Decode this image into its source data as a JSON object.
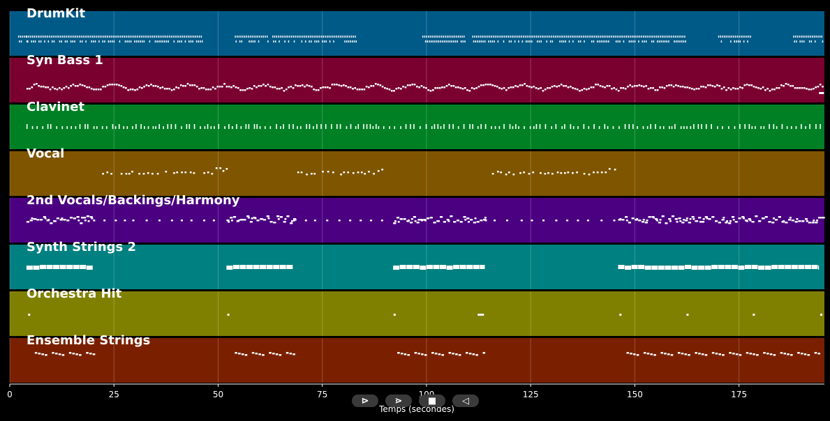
{
  "chart_data": {
    "type": "piano-roll",
    "xlabel": "Temps (secondes)",
    "xlim": [
      0,
      195.5
    ],
    "xticks": [
      0,
      25,
      50,
      75,
      100,
      125,
      150,
      175
    ],
    "grid": true,
    "tracks": [
      {
        "name": "DrumKit",
        "color": "#005a87",
        "style": "drum",
        "sections": [
          [
            2,
            4
          ],
          [
            4,
            46
          ],
          [
            54,
            62
          ],
          [
            63,
            83
          ],
          [
            99,
            109
          ],
          [
            111,
            162
          ],
          [
            170,
            178
          ],
          [
            188,
            195
          ]
        ]
      },
      {
        "name": "Syn Bass 1",
        "color": "#7a0030",
        "style": "bass",
        "sections": [
          [
            4,
            195
          ]
        ]
      },
      {
        "name": "Clavinet",
        "color": "#008025",
        "style": "clav",
        "sections": [
          [
            4,
            195
          ]
        ]
      },
      {
        "name": "Vocal",
        "color": "#7f5500",
        "style": "melody",
        "sections": [
          [
            21,
            52
          ],
          [
            69,
            91
          ],
          [
            115,
            146
          ]
        ]
      },
      {
        "name": "2nd Vocals/Backings/Harmony",
        "color": "#4b0082",
        "style": "dense",
        "sections": [
          [
            4,
            20
          ],
          [
            52,
            68
          ],
          [
            92,
            114
          ],
          [
            146,
            195
          ]
        ],
        "sparse": [
          [
            20,
            50
          ],
          [
            68,
            92
          ],
          [
            114,
            146
          ]
        ]
      },
      {
        "name": "Synth Strings 2",
        "color": "#008080",
        "style": "pad",
        "sections": [
          [
            4,
            20
          ],
          [
            52,
            68
          ],
          [
            92,
            114
          ],
          [
            146,
            194
          ]
        ]
      },
      {
        "name": "Orchestra Hit",
        "color": "#808000",
        "style": "hits",
        "points": [
          4.4,
          52.2,
          92.1,
          112.3,
          112.8,
          113.3,
          146.3,
          162.4,
          178.3,
          194.5
        ]
      },
      {
        "name": "Ensemble Strings",
        "color": "#7a2000",
        "style": "strings",
        "sections": [
          [
            6,
            20
          ],
          [
            54,
            68
          ],
          [
            93,
            114
          ],
          [
            148,
            194
          ]
        ]
      }
    ]
  },
  "controls": {
    "play_label": "⊳",
    "forward_label": "⋗",
    "stop_label": "■",
    "back_label": "◁"
  }
}
